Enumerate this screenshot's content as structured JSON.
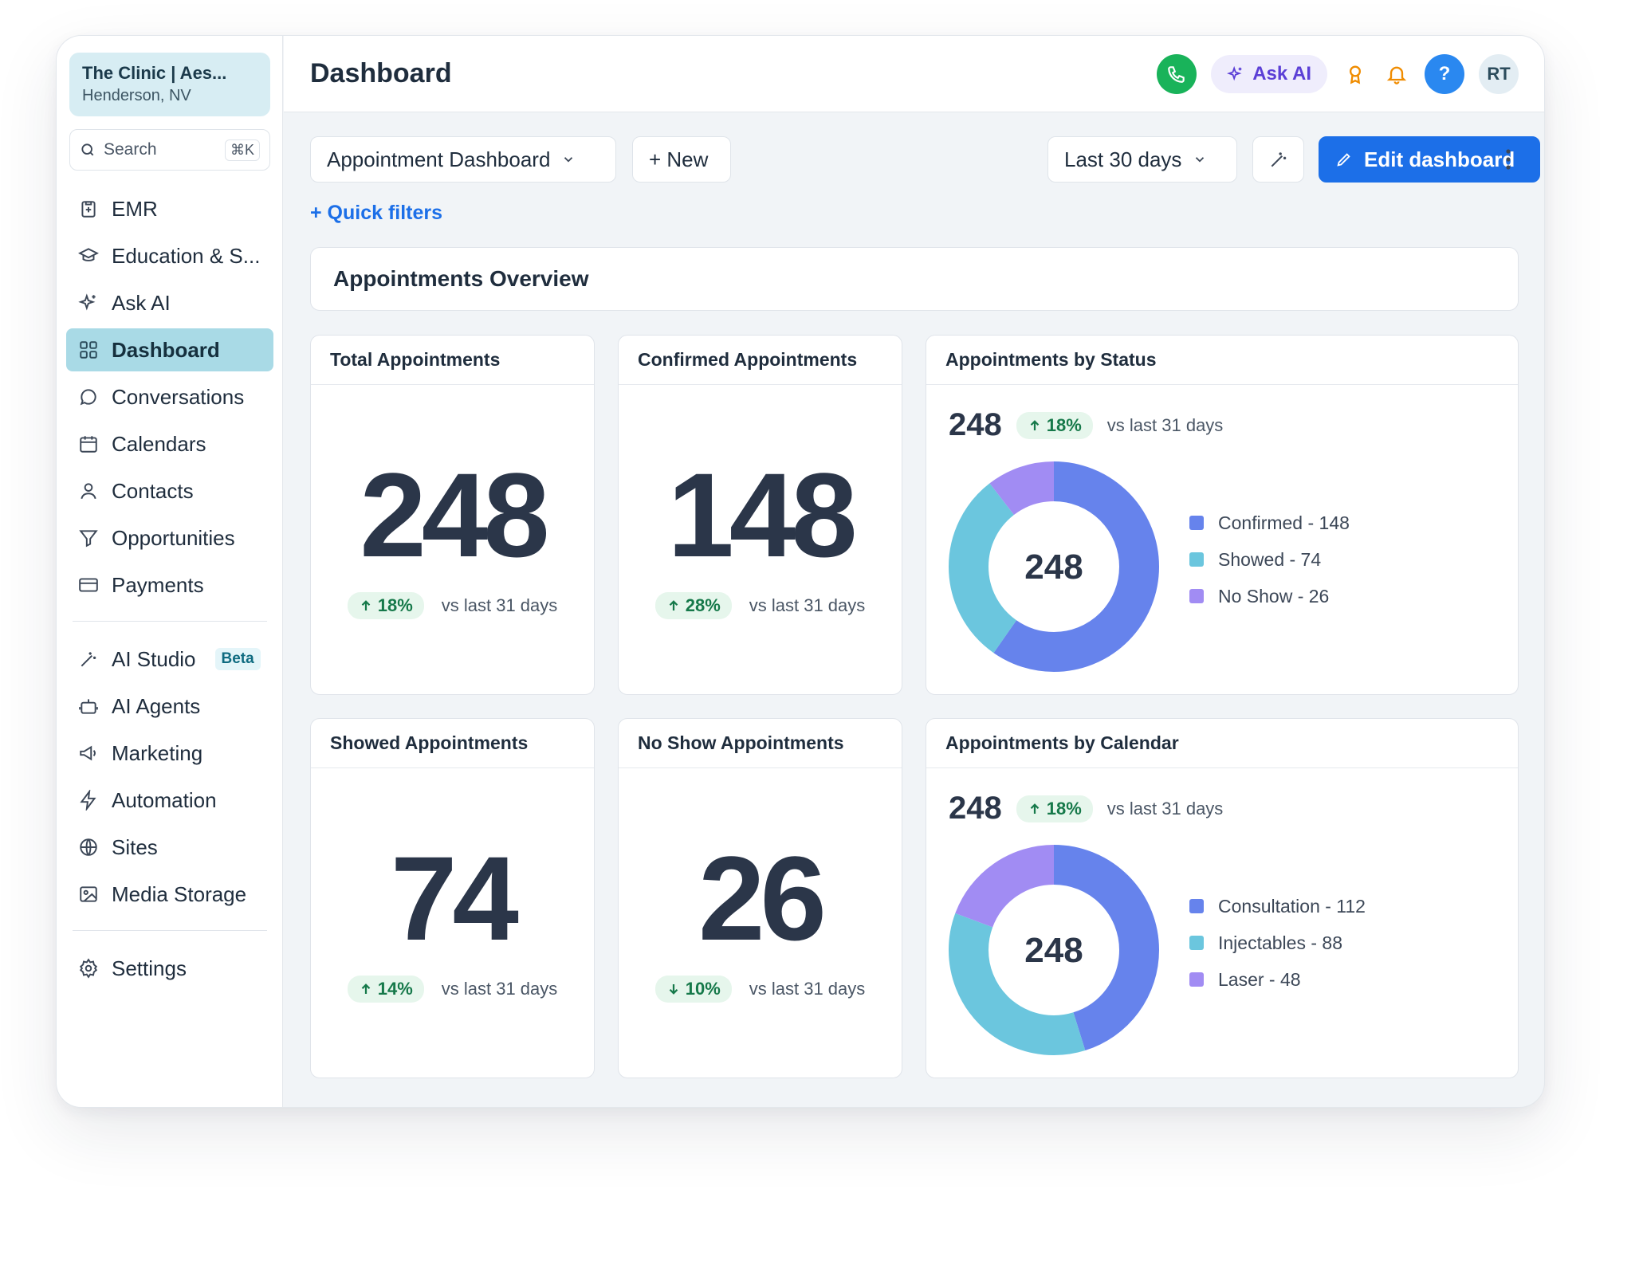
{
  "org": {
    "name": "The Clinic | Aes...",
    "location": "Henderson, NV"
  },
  "search": {
    "placeholder": "Search",
    "shortcut": "⌘K"
  },
  "sidebar": {
    "items": [
      {
        "label": "EMR",
        "icon": "clipboard-plus-icon"
      },
      {
        "label": "Education & S...",
        "icon": "graduation-cap-icon"
      },
      {
        "label": "Ask AI",
        "icon": "sparkle-icon"
      },
      {
        "label": "Dashboard",
        "icon": "grid-icon",
        "active": true
      },
      {
        "label": "Conversations",
        "icon": "chat-bubble-icon"
      },
      {
        "label": "Calendars",
        "icon": "calendar-icon"
      },
      {
        "label": "Contacts",
        "icon": "person-icon"
      },
      {
        "label": "Opportunities",
        "icon": "funnel-icon"
      },
      {
        "label": "Payments",
        "icon": "credit-card-icon"
      }
    ],
    "items2": [
      {
        "label": "AI Studio",
        "icon": "magic-wand-icon",
        "badge": "Beta"
      },
      {
        "label": "AI Agents",
        "icon": "robot-icon"
      },
      {
        "label": "Marketing",
        "icon": "megaphone-icon"
      },
      {
        "label": "Automation",
        "icon": "lightning-icon"
      },
      {
        "label": "Sites",
        "icon": "globe-icon"
      },
      {
        "label": "Media Storage",
        "icon": "image-icon"
      }
    ],
    "settings": {
      "label": "Settings",
      "icon": "gear-icon"
    }
  },
  "header": {
    "title": "Dashboard",
    "ask_ai": "Ask AI",
    "help": "?",
    "avatar": "RT"
  },
  "toolbar": {
    "dashboard_select": "Appointment Dashboard",
    "new_label": "+ New",
    "range_select": "Last 30 days",
    "edit_label": "Edit dashboard",
    "quick_filters": "+ Quick filters"
  },
  "overview_title": "Appointments Overview",
  "colors": {
    "blue": "#6683ec",
    "teal": "#6bc6de",
    "purple": "#a18cf3",
    "primary": "#1c6fe8",
    "green": "#19b35a"
  },
  "stats": [
    {
      "title": "Total Appointments",
      "value": "248",
      "delta": "18%",
      "direction": "up",
      "compare": "vs last 31 days"
    },
    {
      "title": "Confirmed Appointments",
      "value": "148",
      "delta": "28%",
      "direction": "up",
      "compare": "vs last 31 days"
    },
    {
      "title": "Showed Appointments",
      "value": "74",
      "delta": "14%",
      "direction": "up",
      "compare": "vs last 31 days"
    },
    {
      "title": "No Show Appointments",
      "value": "26",
      "delta": "10%",
      "direction": "down",
      "compare": "vs last 31 days"
    }
  ],
  "chart_data": [
    {
      "type": "pie",
      "title": "Appointments by Status",
      "total": "248",
      "delta": "18%",
      "compare": "vs last 31 days",
      "legend": [
        "Confirmed - 148",
        "Showed - 74",
        "No Show - 26"
      ],
      "series": [
        {
          "name": "Confirmed",
          "value": 148,
          "color": "#6683ec"
        },
        {
          "name": "Showed",
          "value": 74,
          "color": "#6bc6de"
        },
        {
          "name": "No Show",
          "value": 26,
          "color": "#a18cf3"
        }
      ]
    },
    {
      "type": "pie",
      "title": "Appointments by Calendar",
      "total": "248",
      "delta": "18%",
      "compare": "vs last 31 days",
      "legend": [
        "Consultation - 112",
        "Injectables - 88",
        "Laser - 48"
      ],
      "series": [
        {
          "name": "Consultation",
          "value": 112,
          "color": "#6683ec"
        },
        {
          "name": "Injectables",
          "value": 88,
          "color": "#6bc6de"
        },
        {
          "name": "Laser",
          "value": 48,
          "color": "#a18cf3"
        }
      ]
    }
  ]
}
